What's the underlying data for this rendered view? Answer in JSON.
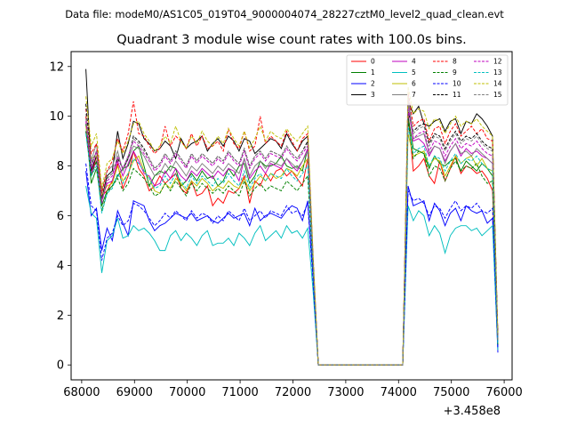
{
  "chart_data": {
    "type": "line",
    "suptitle": "Data file: modeM0/AS1C05_019T04_9000004074_28227cztM0_level2_quad_clean.evt",
    "title": "Quadrant 3 module wise count rates with 100.0s bins.",
    "xlabel": "",
    "ylabel": "",
    "x_offset_label": "+3.458e8",
    "xlim": [
      67800,
      76150
    ],
    "ylim": [
      -0.6,
      12.6
    ],
    "xticks": [
      68000,
      69000,
      70000,
      71000,
      72000,
      73000,
      74000,
      75000,
      76000
    ],
    "xtick_labels": [
      "68000",
      "69000",
      "70000",
      "71000",
      "72000",
      "73000",
      "74000",
      "75000",
      "76000"
    ],
    "yticks": [
      0,
      2,
      4,
      6,
      8,
      10,
      12
    ],
    "ytick_labels": [
      "0",
      "2",
      "4",
      "6",
      "8",
      "10",
      "12"
    ],
    "grid": false,
    "legend_position": "top-right",
    "legend_columns": 4,
    "x_seg1_start": 68080,
    "x_seg2_start": 74180,
    "step": 100,
    "gap_y": 0,
    "series": [
      {
        "name": "0",
        "color": "#ff0000",
        "dash": "solid",
        "seg1": [
          10.0,
          7.6,
          8.4,
          6.8,
          7.0,
          7.4,
          8.1,
          7.1,
          7.6,
          8.6,
          7.9,
          7.6,
          7.0,
          7.2,
          7.6,
          7.3,
          7.5,
          7.7,
          7.1,
          6.9,
          7.4,
          6.8,
          6.9,
          7.2,
          6.4,
          6.7,
          6.5,
          7.0,
          6.9,
          7.1,
          7.6,
          6.5,
          7.4,
          7.2,
          7.7,
          7.4,
          7.8,
          7.9,
          7.6,
          7.8,
          7.5,
          7.2,
          8.3,
          4.1
        ],
        "seg2": [
          10.1,
          7.8,
          8.0,
          8.3,
          7.6,
          7.3,
          8.2,
          7.4,
          7.9,
          8.4,
          7.7,
          8.0,
          7.9,
          7.7,
          7.8,
          7.5,
          7.0,
          0.9
        ]
      },
      {
        "name": "1",
        "color": "#008000",
        "dash": "solid",
        "seg1": [
          9.7,
          7.3,
          7.9,
          6.4,
          7.0,
          7.2,
          7.6,
          7.9,
          8.0,
          8.6,
          8.8,
          8.0,
          7.2,
          7.6,
          7.8,
          7.7,
          8.0,
          7.9,
          7.2,
          7.4,
          7.7,
          7.4,
          7.8,
          7.5,
          7.6,
          7.2,
          7.4,
          7.9,
          7.6,
          8.0,
          8.1,
          7.3,
          7.6,
          8.2,
          8.0,
          8.0,
          8.1,
          8.4,
          8.0,
          7.9,
          8.0,
          7.8,
          8.7,
          4.0
        ],
        "seg2": [
          10.0,
          8.7,
          8.6,
          8.5,
          7.9,
          8.4,
          8.1,
          8.0,
          8.2,
          8.3,
          7.8,
          8.2,
          8.0,
          7.8,
          8.1,
          7.9,
          7.6,
          1.2
        ]
      },
      {
        "name": "2",
        "color": "#0000ff",
        "dash": "solid",
        "seg1": [
          7.8,
          6.0,
          6.3,
          4.6,
          5.5,
          5.0,
          6.2,
          5.7,
          5.2,
          6.6,
          6.5,
          6.4,
          5.8,
          5.4,
          5.6,
          5.7,
          5.9,
          6.1,
          6.0,
          5.9,
          6.1,
          5.8,
          5.9,
          6.0,
          5.8,
          5.7,
          5.9,
          6.1,
          5.9,
          6.0,
          6.1,
          5.6,
          6.3,
          5.8,
          6.0,
          6.1,
          6.0,
          5.9,
          6.2,
          6.4,
          6.3,
          5.8,
          6.6,
          3.6
        ],
        "seg2": [
          7.2,
          6.4,
          6.5,
          6.6,
          5.8,
          6.5,
          6.2,
          5.6,
          6.1,
          6.3,
          5.8,
          6.4,
          6.2,
          6.1,
          6.2,
          5.7,
          5.9,
          0.5
        ]
      },
      {
        "name": "3",
        "color": "#000000",
        "dash": "solid",
        "seg1": [
          11.9,
          7.8,
          8.4,
          6.7,
          7.6,
          7.8,
          9.4,
          8.3,
          8.9,
          9.8,
          9.7,
          9.1,
          8.9,
          8.6,
          8.7,
          9.0,
          8.8,
          8.3,
          9.1,
          8.7,
          8.9,
          9.0,
          9.2,
          8.6,
          8.9,
          9.1,
          8.8,
          9.2,
          9.0,
          8.6,
          9.1,
          9.0,
          8.5,
          8.7,
          8.9,
          9.1,
          9.0,
          8.7,
          9.3,
          8.9,
          8.6,
          9.0,
          9.2,
          4.3
        ],
        "seg2": [
          10.6,
          10.1,
          10.4,
          9.7,
          9.6,
          9.8,
          9.9,
          9.4,
          9.8,
          9.9,
          9.3,
          9.8,
          9.7,
          10.1,
          9.9,
          9.6,
          9.2,
          1.0
        ]
      },
      {
        "name": "4",
        "color": "#bf00bf",
        "dash": "solid",
        "seg1": [
          9.4,
          7.7,
          8.2,
          6.6,
          7.3,
          7.4,
          8.2,
          7.6,
          8.1,
          8.6,
          8.2,
          7.7,
          7.6,
          7.2,
          7.3,
          7.8,
          7.5,
          7.9,
          7.6,
          7.4,
          7.8,
          7.6,
          7.9,
          7.7,
          7.5,
          7.8,
          7.6,
          7.9,
          7.8,
          7.4,
          8.3,
          7.5,
          7.8,
          8.0,
          7.7,
          8.1,
          8.0,
          7.9,
          8.3,
          8.0,
          7.8,
          8.2,
          8.7,
          4.2
        ],
        "seg2": [
          10.6,
          9.0,
          9.1,
          8.9,
          8.4,
          8.8,
          8.7,
          8.2,
          8.6,
          8.9,
          8.4,
          8.7,
          8.5,
          8.6,
          8.4,
          8.3,
          8.1,
          1.1
        ]
      },
      {
        "name": "5",
        "color": "#00bfbf",
        "dash": "solid",
        "seg1": [
          7.2,
          6.1,
          5.9,
          3.7,
          5.0,
          5.2,
          5.9,
          5.1,
          5.2,
          5.6,
          5.4,
          5.5,
          5.3,
          5.0,
          4.6,
          4.6,
          5.2,
          5.4,
          5.0,
          5.3,
          5.1,
          4.8,
          5.2,
          5.4,
          4.8,
          4.9,
          4.9,
          5.1,
          4.8,
          5.3,
          5.1,
          4.8,
          5.3,
          5.6,
          5.0,
          5.2,
          5.4,
          5.1,
          5.6,
          5.3,
          5.4,
          5.1,
          5.5,
          3.0
        ],
        "seg2": [
          6.4,
          5.8,
          6.2,
          6.0,
          5.2,
          5.6,
          5.3,
          4.5,
          5.2,
          5.5,
          5.6,
          5.6,
          5.4,
          5.5,
          5.2,
          5.4,
          5.6,
          0.6
        ]
      },
      {
        "name": "6",
        "color": "#bfbf00",
        "dash": "solid",
        "seg1": [
          9.6,
          8.3,
          8.4,
          6.8,
          7.2,
          7.3,
          8.0,
          7.4,
          7.7,
          8.2,
          8.4,
          7.8,
          7.5,
          7.0,
          6.9,
          7.3,
          7.1,
          7.5,
          7.3,
          7.0,
          7.4,
          7.2,
          7.5,
          7.3,
          7.0,
          7.2,
          7.1,
          7.4,
          7.2,
          7.1,
          7.5,
          7.0,
          7.3,
          7.6,
          7.4,
          7.7,
          7.5,
          7.6,
          7.9,
          7.8,
          7.6,
          8.0,
          8.3,
          4.0
        ],
        "seg2": [
          9.3,
          8.4,
          8.5,
          8.6,
          8.0,
          8.3,
          8.2,
          7.6,
          8.0,
          8.4,
          8.1,
          8.3,
          8.4,
          8.0,
          8.3,
          7.9,
          7.8,
          0.9
        ]
      },
      {
        "name": "7",
        "color": "#808080",
        "dash": "solid",
        "seg1": [
          9.9,
          8.2,
          8.9,
          7.0,
          7.8,
          8.0,
          8.6,
          7.8,
          8.3,
          8.8,
          8.7,
          8.4,
          8.0,
          7.6,
          7.7,
          8.1,
          7.8,
          8.2,
          7.9,
          7.6,
          8.0,
          7.8,
          8.1,
          7.9,
          7.7,
          8.0,
          7.8,
          8.1,
          7.9,
          7.7,
          8.3,
          7.6,
          8.0,
          8.2,
          7.9,
          8.2,
          8.1,
          8.0,
          8.3,
          8.1,
          7.9,
          8.2,
          8.6,
          4.1
        ],
        "seg2": [
          10.9,
          9.1,
          9.2,
          9.3,
          8.5,
          8.8,
          8.7,
          8.1,
          8.6,
          8.9,
          8.5,
          8.6,
          8.4,
          8.7,
          8.5,
          8.3,
          8.1,
          1.1
        ]
      },
      {
        "name": "8",
        "color": "#ff0000",
        "dash": "dashed",
        "seg1": [
          10.3,
          8.5,
          8.9,
          6.9,
          7.8,
          8.2,
          9.1,
          8.6,
          9.3,
          10.6,
          9.3,
          9.2,
          8.8,
          8.5,
          8.7,
          9.6,
          8.8,
          9.2,
          9.0,
          8.7,
          9.3,
          8.8,
          9.2,
          8.7,
          8.8,
          9.0,
          8.6,
          9.5,
          8.9,
          8.7,
          9.4,
          8.6,
          8.8,
          10.0,
          8.9,
          9.2,
          9.0,
          8.8,
          9.4,
          9.0,
          8.6,
          9.1,
          9.3,
          4.4
        ],
        "seg2": [
          11.0,
          9.6,
          9.8,
          9.9,
          9.0,
          9.5,
          9.6,
          8.9,
          9.4,
          9.7,
          9.2,
          9.4,
          9.6,
          9.3,
          9.5,
          9.1,
          9.0,
          1.2
        ]
      },
      {
        "name": "9",
        "color": "#008000",
        "dash": "dashed",
        "seg1": [
          9.4,
          7.6,
          8.2,
          6.2,
          6.9,
          7.2,
          7.5,
          7.0,
          7.3,
          7.9,
          7.7,
          7.5,
          7.2,
          6.8,
          6.9,
          7.3,
          7.0,
          7.4,
          7.1,
          6.8,
          7.3,
          7.0,
          7.3,
          7.1,
          6.9,
          7.1,
          6.9,
          7.2,
          7.0,
          6.8,
          7.4,
          6.8,
          7.1,
          7.3,
          7.0,
          7.2,
          7.1,
          7.0,
          7.4,
          7.2,
          7.0,
          7.3,
          7.6,
          3.9
        ],
        "seg2": [
          9.8,
          8.3,
          8.6,
          8.5,
          7.6,
          8.0,
          7.9,
          7.4,
          7.9,
          8.2,
          7.8,
          8.0,
          7.9,
          8.1,
          7.6,
          7.3,
          7.4,
          0.8
        ]
      },
      {
        "name": "10",
        "color": "#0000ff",
        "dash": "dashed",
        "seg1": [
          8.1,
          6.4,
          6.2,
          4.2,
          5.1,
          5.3,
          6.0,
          5.6,
          5.8,
          6.5,
          6.4,
          6.2,
          5.9,
          5.6,
          5.8,
          6.1,
          5.9,
          6.2,
          6.0,
          5.8,
          6.2,
          5.9,
          6.1,
          6.0,
          5.7,
          6.0,
          5.8,
          6.2,
          6.0,
          5.8,
          6.3,
          5.8,
          6.0,
          6.2,
          5.9,
          6.2,
          6.1,
          6.0,
          6.4,
          6.1,
          6.2,
          6.0,
          6.5,
          3.4
        ],
        "seg2": [
          7.0,
          6.6,
          6.7,
          6.5,
          6.0,
          6.4,
          6.3,
          5.9,
          6.3,
          6.6,
          6.2,
          6.4,
          6.3,
          6.5,
          6.2,
          6.1,
          6.3,
          0.7
        ]
      },
      {
        "name": "11",
        "color": "#000000",
        "dash": "dashed",
        "seg1": [
          10.5,
          8.0,
          8.6,
          6.7,
          7.5,
          7.7,
          8.3,
          7.9,
          8.3,
          9.2,
          9.0,
          8.7,
          8.3,
          7.9,
          8.1,
          8.5,
          8.2,
          8.6,
          8.3,
          8.0,
          8.5,
          8.2,
          8.5,
          8.3,
          8.1,
          8.4,
          8.2,
          8.6,
          8.3,
          8.1,
          8.7,
          8.0,
          8.4,
          8.6,
          8.3,
          8.6,
          8.5,
          8.4,
          8.8,
          8.5,
          8.3,
          8.6,
          9.0,
          4.2
        ],
        "seg2": [
          10.2,
          9.4,
          9.6,
          9.7,
          8.9,
          9.3,
          9.2,
          8.7,
          9.1,
          9.4,
          9.0,
          9.2,
          9.1,
          9.3,
          9.0,
          8.8,
          8.7,
          1.0
        ]
      },
      {
        "name": "12",
        "color": "#bf00bf",
        "dash": "dashed",
        "seg1": [
          9.8,
          7.9,
          8.6,
          6.5,
          7.4,
          7.6,
          8.4,
          7.9,
          8.4,
          9.0,
          8.8,
          8.5,
          8.2,
          7.8,
          8.0,
          8.4,
          8.1,
          8.5,
          8.2,
          7.9,
          8.4,
          8.1,
          8.4,
          8.2,
          8.0,
          8.3,
          8.1,
          8.5,
          8.2,
          8.0,
          8.6,
          7.9,
          8.3,
          8.5,
          8.2,
          8.5,
          8.4,
          8.3,
          8.7,
          8.4,
          8.2,
          8.5,
          8.8,
          4.2
        ],
        "seg2": [
          10.3,
          9.1,
          9.3,
          9.4,
          8.6,
          9.0,
          8.9,
          8.4,
          8.8,
          9.1,
          8.7,
          8.9,
          8.8,
          9.0,
          8.7,
          8.5,
          8.4,
          1.0
        ]
      },
      {
        "name": "13",
        "color": "#00bfbf",
        "dash": "dashed",
        "seg1": [
          9.3,
          7.6,
          8.0,
          6.1,
          6.9,
          7.1,
          7.7,
          7.3,
          7.7,
          8.3,
          8.1,
          7.8,
          7.5,
          7.1,
          7.2,
          7.6,
          7.3,
          7.7,
          7.4,
          7.1,
          7.6,
          7.3,
          7.6,
          7.4,
          7.2,
          7.5,
          7.3,
          7.7,
          7.4,
          7.2,
          7.8,
          7.1,
          7.5,
          7.7,
          7.4,
          7.7,
          7.6,
          7.5,
          7.9,
          7.6,
          7.4,
          7.7,
          8.0,
          4.0
        ],
        "seg2": [
          9.6,
          8.5,
          8.7,
          8.8,
          8.0,
          8.4,
          8.3,
          7.8,
          8.2,
          8.5,
          8.1,
          8.3,
          8.2,
          8.4,
          8.1,
          7.9,
          7.8,
          0.9
        ]
      },
      {
        "name": "14",
        "color": "#bfbf00",
        "dash": "dashed",
        "seg1": [
          10.8,
          8.8,
          9.3,
          7.1,
          8.1,
          8.3,
          9.0,
          8.5,
          9.0,
          9.7,
          9.8,
          9.3,
          9.0,
          8.6,
          8.8,
          9.2,
          8.9,
          9.6,
          9.0,
          8.7,
          9.2,
          8.9,
          9.4,
          9.0,
          8.8,
          9.2,
          8.9,
          9.5,
          9.1,
          8.8,
          9.4,
          8.7,
          9.1,
          9.6,
          9.0,
          9.4,
          9.2,
          9.1,
          9.5,
          9.2,
          9.0,
          9.3,
          9.6,
          4.5
        ],
        "seg2": [
          11.2,
          10.1,
          10.3,
          10.2,
          9.5,
          9.9,
          9.8,
          9.3,
          9.7,
          10.0,
          9.6,
          9.8,
          9.7,
          9.9,
          9.6,
          9.4,
          9.2,
          1.2
        ]
      },
      {
        "name": "15",
        "color": "#808080",
        "dash": "dashed",
        "seg1": [
          10.1,
          8.1,
          8.6,
          6.6,
          7.5,
          7.7,
          8.4,
          7.9,
          8.4,
          9.1,
          8.9,
          8.6,
          8.3,
          7.9,
          8.1,
          8.5,
          8.2,
          8.6,
          8.3,
          8.0,
          8.5,
          8.2,
          8.5,
          8.3,
          8.1,
          8.4,
          8.2,
          8.6,
          8.3,
          8.1,
          8.7,
          8.0,
          8.4,
          8.6,
          8.3,
          8.6,
          8.5,
          8.4,
          8.8,
          8.5,
          8.3,
          8.6,
          8.9,
          4.3
        ],
        "seg2": [
          10.5,
          9.3,
          9.5,
          9.6,
          8.8,
          9.2,
          9.1,
          8.6,
          9.0,
          9.3,
          8.9,
          9.1,
          9.0,
          9.2,
          8.9,
          8.7,
          8.6,
          1.0
        ]
      }
    ]
  }
}
